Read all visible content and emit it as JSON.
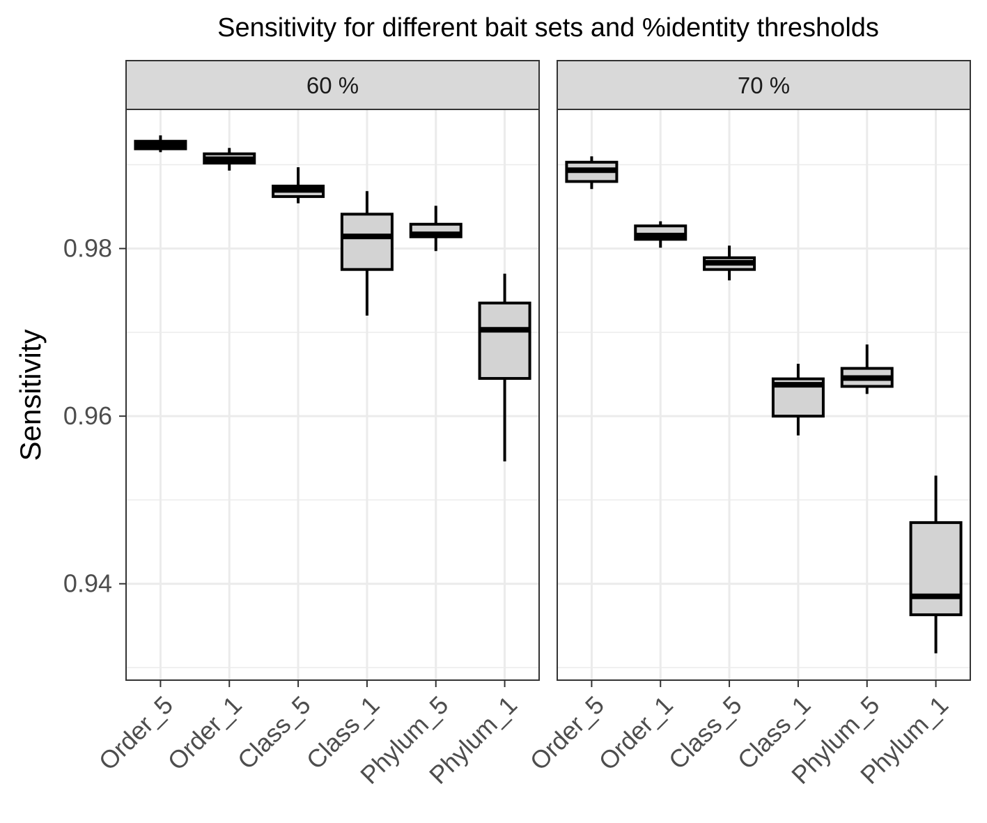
{
  "chart_data": {
    "type": "boxplot",
    "title": "Sensitivity for different bait sets and %identity thresholds",
    "xlabel": "",
    "ylabel": "Sensitivity",
    "ylim": [
      0.9285,
      0.9966
    ],
    "yticks": [
      0.94,
      0.96,
      0.98
    ],
    "ytick_labels": [
      "0.94",
      "0.96",
      "0.98"
    ],
    "grid": true,
    "colors": {
      "box_fill": "#d3d3d3",
      "strip_fill": "#d9d9d9",
      "grid": "#ebebeb",
      "panel_border": "#333333",
      "box_stroke": "#000000"
    },
    "categories": [
      "Order_5",
      "Order_1",
      "Class_5",
      "Class_1",
      "Phylum_5",
      "Phylum_1"
    ],
    "panels": [
      {
        "label": "60 %",
        "boxes": [
          {
            "category": "Order_5",
            "min": 0.9915,
            "q1": 0.9919,
            "median": 0.99235,
            "q3": 0.9928,
            "max": 0.9935
          },
          {
            "category": "Order_1",
            "min": 0.9893,
            "q1": 0.9902,
            "median": 0.99065,
            "q3": 0.9913,
            "max": 0.992
          },
          {
            "category": "Class_5",
            "min": 0.9854,
            "q1": 0.9862,
            "median": 0.987,
            "q3": 0.98745,
            "max": 0.9897
          },
          {
            "category": "Class_1",
            "min": 0.972,
            "q1": 0.9775,
            "median": 0.98145,
            "q3": 0.9841,
            "max": 0.98685
          },
          {
            "category": "Phylum_5",
            "min": 0.9797,
            "q1": 0.9814,
            "median": 0.9817,
            "q3": 0.9829,
            "max": 0.9851
          },
          {
            "category": "Phylum_1",
            "min": 0.9546,
            "q1": 0.9645,
            "median": 0.9703,
            "q3": 0.9735,
            "max": 0.977
          }
        ]
      },
      {
        "label": "70 %",
        "boxes": [
          {
            "category": "Order_5",
            "min": 0.9871,
            "q1": 0.988,
            "median": 0.98935,
            "q3": 0.9903,
            "max": 0.991
          },
          {
            "category": "Order_1",
            "min": 0.9801,
            "q1": 0.9811,
            "median": 0.98155,
            "q3": 0.9827,
            "max": 0.98325
          },
          {
            "category": "Class_5",
            "min": 0.9762,
            "q1": 0.9775,
            "median": 0.9783,
            "q3": 0.9789,
            "max": 0.98035
          },
          {
            "category": "Class_1",
            "min": 0.9577,
            "q1": 0.96,
            "median": 0.96375,
            "q3": 0.96445,
            "max": 0.96625
          },
          {
            "category": "Phylum_5",
            "min": 0.96265,
            "q1": 0.96355,
            "median": 0.96455,
            "q3": 0.9657,
            "max": 0.96855
          },
          {
            "category": "Phylum_1",
            "min": 0.9317,
            "q1": 0.9363,
            "median": 0.9385,
            "q3": 0.9473,
            "max": 0.9529
          }
        ]
      }
    ]
  }
}
